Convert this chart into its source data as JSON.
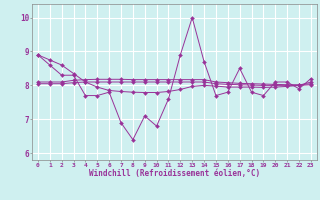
{
  "xlabel": "Windchill (Refroidissement éolien,°C)",
  "bg_color": "#cff0f0",
  "grid_color": "#ffffff",
  "line_color": "#993399",
  "xlim": [
    -0.5,
    23.5
  ],
  "ylim": [
    5.8,
    10.4
  ],
  "yticks": [
    6,
    7,
    8,
    9,
    10
  ],
  "xticks": [
    0,
    1,
    2,
    3,
    4,
    5,
    6,
    7,
    8,
    9,
    10,
    11,
    12,
    13,
    14,
    15,
    16,
    17,
    18,
    19,
    20,
    21,
    22,
    23
  ],
  "series": [
    [
      8.9,
      8.6,
      8.3,
      8.3,
      7.7,
      7.7,
      7.8,
      6.9,
      6.4,
      7.1,
      6.8,
      7.6,
      8.9,
      10.0,
      8.7,
      7.7,
      7.8,
      8.5,
      7.8,
      7.7,
      8.1,
      8.1,
      7.9,
      8.2
    ],
    [
      8.9,
      8.75,
      8.6,
      8.35,
      8.1,
      7.95,
      7.85,
      7.82,
      7.8,
      7.79,
      7.79,
      7.82,
      7.88,
      7.97,
      8.0,
      7.98,
      7.95,
      7.95,
      7.95,
      7.94,
      7.95,
      7.97,
      8.0,
      8.1
    ],
    [
      8.1,
      8.1,
      8.1,
      8.15,
      8.17,
      8.18,
      8.18,
      8.18,
      8.17,
      8.17,
      8.17,
      8.17,
      8.17,
      8.17,
      8.17,
      8.1,
      8.08,
      8.06,
      8.05,
      8.04,
      8.03,
      8.02,
      8.02,
      8.05
    ],
    [
      8.05,
      8.05,
      8.05,
      8.08,
      8.1,
      8.1,
      8.1,
      8.1,
      8.1,
      8.1,
      8.1,
      8.1,
      8.1,
      8.1,
      8.1,
      8.05,
      8.03,
      8.02,
      8.01,
      8.0,
      8.0,
      8.0,
      8.0,
      8.02
    ]
  ]
}
